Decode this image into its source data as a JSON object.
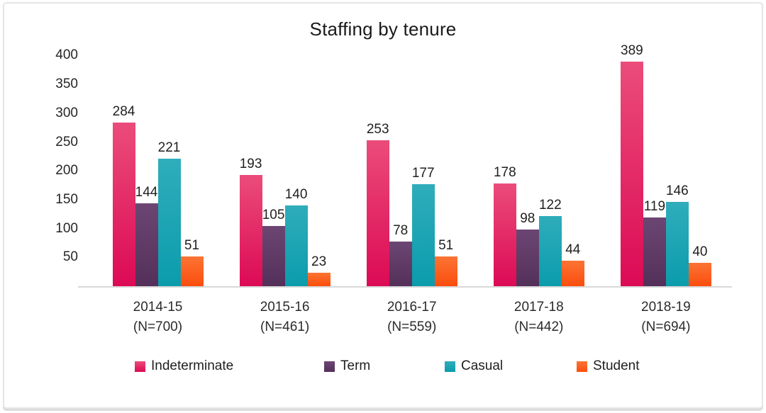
{
  "frame": {
    "background": "#ffffff",
    "border_color": "#e5e5e8"
  },
  "chart_data": {
    "type": "bar",
    "title": "Staffing by tenure",
    "categories": [
      {
        "label": "2014-15",
        "sublabel": "(N=700)"
      },
      {
        "label": "2015-16",
        "sublabel": "(N=461)"
      },
      {
        "label": "2016-17",
        "sublabel": "(N=559)"
      },
      {
        "label": "2017-18",
        "sublabel": "(N=442)"
      },
      {
        "label": "2018-19",
        "sublabel": "(N=694)"
      }
    ],
    "series": [
      {
        "name": "Indeterminate",
        "values": [
          284,
          193,
          253,
          178,
          389
        ],
        "color_top": "#eb4c7a",
        "color_bottom": "#dc0a55"
      },
      {
        "name": "Term",
        "values": [
          144,
          105,
          78,
          98,
          119
        ],
        "color_top": "#6c4673",
        "color_bottom": "#533059"
      },
      {
        "name": "Casual",
        "values": [
          221,
          140,
          177,
          122,
          146
        ],
        "color_top": "#2fadbb",
        "color_bottom": "#0b9cac"
      },
      {
        "name": "Student",
        "values": [
          51,
          23,
          51,
          44,
          40
        ],
        "color_top": "#fb7434",
        "color_bottom": "#fb4d0d"
      }
    ],
    "y_ticks": [
      400,
      350,
      300,
      250,
      200,
      150,
      100,
      50
    ],
    "ylim": [
      0,
      430
    ],
    "grid": false,
    "data_labels": true,
    "legend_position": "bottom",
    "axis_line_color": "#d9d9d9",
    "text_color": "#1f1f1f"
  }
}
